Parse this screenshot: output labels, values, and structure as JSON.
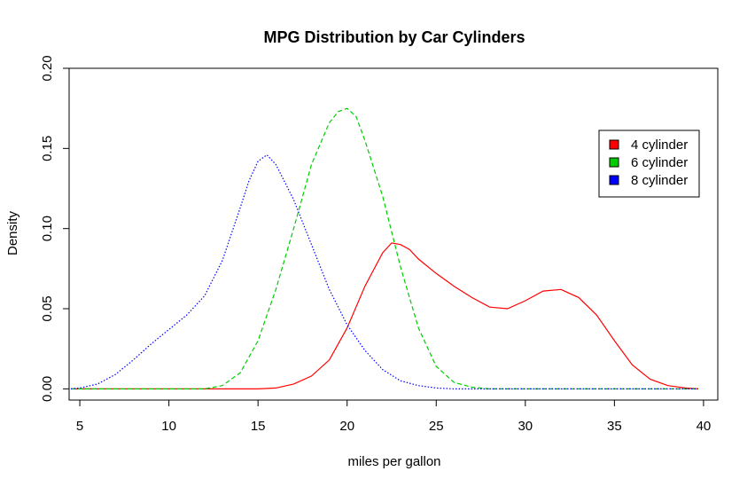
{
  "chart_data": {
    "type": "line",
    "title": "MPG Distribution by Car Cylinders",
    "xlabel": "miles per gallon",
    "ylabel": "Density",
    "xlim": [
      4.4,
      40.8
    ],
    "ylim": [
      -0.007,
      0.2
    ],
    "x_ticks": [
      "5",
      "10",
      "15",
      "20",
      "25",
      "30",
      "35",
      "40"
    ],
    "x_tick_values": [
      5,
      10,
      15,
      20,
      25,
      30,
      35,
      40
    ],
    "y_ticks": [
      "0.00",
      "0.05",
      "0.10",
      "0.15",
      "0.20"
    ],
    "y_tick_values": [
      0.0,
      0.05,
      0.1,
      0.15,
      0.2
    ],
    "legend_position": "top-right",
    "series": [
      {
        "name": "4 cylinder",
        "color": "#ff0000",
        "line_style": "solid",
        "x": [
          4.5,
          10,
          15,
          16,
          17,
          18,
          19,
          20,
          21,
          22,
          22.5,
          23,
          23.5,
          24,
          25,
          26,
          27,
          28,
          29,
          30,
          31,
          32,
          33,
          34,
          35,
          36,
          37,
          38,
          39,
          39.7
        ],
        "y": [
          0.0,
          0.0,
          0.0,
          0.0005,
          0.003,
          0.008,
          0.018,
          0.038,
          0.064,
          0.085,
          0.091,
          0.09,
          0.087,
          0.081,
          0.072,
          0.064,
          0.057,
          0.051,
          0.05,
          0.055,
          0.061,
          0.062,
          0.057,
          0.046,
          0.03,
          0.015,
          0.006,
          0.002,
          0.0005,
          0.0
        ]
      },
      {
        "name": "6 cylinder",
        "color": "#00cd00",
        "line_style": "dashed",
        "x": [
          4.5,
          12,
          13,
          14,
          15,
          16,
          17,
          18,
          19,
          19.5,
          20,
          20.5,
          21,
          22,
          23,
          24,
          25,
          26,
          27,
          28,
          39.7
        ],
        "y": [
          0.0,
          0.0,
          0.002,
          0.01,
          0.03,
          0.062,
          0.1,
          0.14,
          0.166,
          0.173,
          0.175,
          0.17,
          0.155,
          0.12,
          0.076,
          0.038,
          0.014,
          0.004,
          0.001,
          0.0,
          0.0
        ]
      },
      {
        "name": "8 cylinder",
        "color": "#0000ff",
        "line_style": "dotted",
        "x": [
          4.5,
          5,
          6,
          7,
          8,
          9,
          10,
          11,
          12,
          13,
          14,
          14.5,
          15,
          15.5,
          16,
          17,
          18,
          19,
          20,
          21,
          22,
          23,
          24,
          25,
          26,
          27,
          39.7
        ],
        "y": [
          0.0,
          0.0005,
          0.003,
          0.009,
          0.018,
          0.028,
          0.037,
          0.046,
          0.058,
          0.08,
          0.113,
          0.13,
          0.142,
          0.146,
          0.14,
          0.118,
          0.09,
          0.062,
          0.04,
          0.024,
          0.012,
          0.005,
          0.002,
          0.0005,
          0.0,
          0.0,
          0.0
        ]
      }
    ]
  }
}
